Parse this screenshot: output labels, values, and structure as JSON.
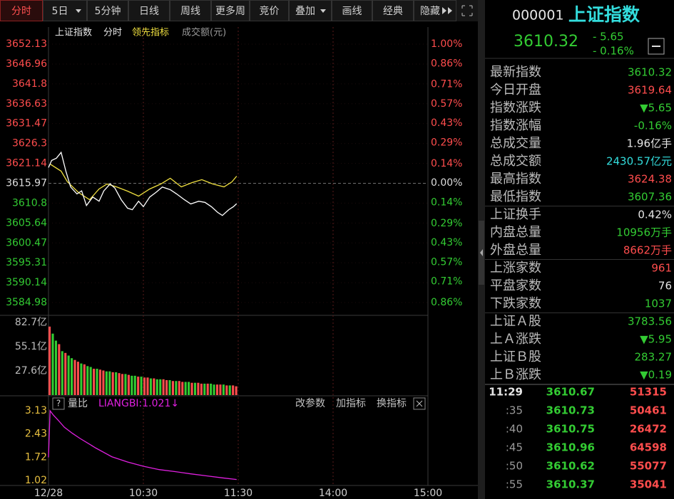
{
  "toolbar": {
    "tabs": [
      "分时",
      "5日",
      "5分钟",
      "日线",
      "周线",
      "更多周",
      "竞价",
      "叠加",
      "画线",
      "经典",
      "隐藏"
    ],
    "active": 0
  },
  "chart": {
    "legend": [
      {
        "text": "上证指数",
        "color": "#e6e6e6"
      },
      {
        "text": "分时",
        "color": "#e6e6e6"
      },
      {
        "text": "领先指标",
        "color": "#f0e040"
      },
      {
        "text": "成交额(元)",
        "color": "#9a9a9a"
      }
    ],
    "xlim": [
      0,
      240
    ],
    "xticks": [
      {
        "value": 0,
        "label": "12/28"
      },
      {
        "value": 60,
        "label": "10:30"
      },
      {
        "value": 120,
        "label": "11:30"
      },
      {
        "value": 180,
        "label": "14:00"
      },
      {
        "value": 240,
        "label": "15:00"
      }
    ],
    "ylim": [
      3584.98,
      3652.13
    ],
    "yticks": [
      3652.13,
      3646.96,
      3641.8,
      3636.63,
      3631.47,
      3626.3,
      3621.14,
      3615.97,
      3610.8,
      3605.64,
      3600.47,
      3595.31,
      3590.14,
      3584.98
    ],
    "pct_ylim": [
      -0.86,
      1.0
    ],
    "pct_ticks": [
      {
        "value": 1.0,
        "label": "1.00%"
      },
      {
        "value": 0.86,
        "label": "0.86%"
      },
      {
        "value": 0.71,
        "label": "0.71%"
      },
      {
        "value": 0.57,
        "label": "0.57%"
      },
      {
        "value": 0.43,
        "label": "0.43%"
      },
      {
        "value": 0.29,
        "label": "0.29%"
      },
      {
        "value": 0.14,
        "label": "0.14%"
      },
      {
        "value": 0,
        "label": "0.00%"
      },
      {
        "value": -0.14,
        "label": "0.14%"
      },
      {
        "value": -0.29,
        "label": "0.29%"
      },
      {
        "value": -0.43,
        "label": "0.43%"
      },
      {
        "value": -0.57,
        "label": "0.57%"
      },
      {
        "value": -0.71,
        "label": "0.71%"
      },
      {
        "value": -0.86,
        "label": "0.86%"
      }
    ],
    "up_color": "#ff4d4d",
    "down_color": "#33cc33",
    "flat_color": "#dddddd",
    "index_line": {
      "color": "#ffffff",
      "x": [
        0,
        2,
        5,
        8,
        11,
        14,
        18,
        21,
        24,
        28,
        32,
        35,
        39,
        42,
        46,
        50,
        53,
        57,
        60,
        64,
        68,
        72,
        77,
        81,
        86,
        90,
        95,
        99,
        103,
        107,
        110,
        114,
        117,
        119
      ],
      "values": [
        3620.05,
        3621.9,
        3622.5,
        3624.0,
        3619.1,
        3615.0,
        3613.2,
        3614.0,
        3610.2,
        3612.4,
        3611.3,
        3614.0,
        3615.8,
        3614.7,
        3611.7,
        3609.5,
        3609.1,
        3611.3,
        3609.9,
        3612.4,
        3613.6,
        3615.0,
        3614.3,
        3613.2,
        3611.7,
        3610.6,
        3611.3,
        3611.0,
        3609.9,
        3608.4,
        3607.6,
        3609.1,
        3609.9,
        3610.67
      ]
    },
    "leading_line": {
      "color": "#f0e040",
      "x": [
        1,
        8,
        12,
        19,
        26,
        32,
        37,
        43,
        50,
        57,
        64,
        71,
        77,
        84,
        91,
        97,
        104,
        111,
        116,
        119
      ],
      "values": [
        3620.97,
        3619.12,
        3616.34,
        3613.56,
        3611.71,
        3614.49,
        3615.78,
        3615.04,
        3613.93,
        3612.63,
        3614.49,
        3615.78,
        3617.27,
        3615.04,
        3616.16,
        3616.9,
        3615.78,
        3615.04,
        3616.34,
        3617.82
      ]
    },
    "volume": {
      "ylim": [
        0,
        82.7
      ],
      "yticks": [
        {
          "value": 82.7,
          "label": "82.7亿"
        },
        {
          "value": 55.1,
          "label": "55.1亿"
        },
        {
          "value": 27.6,
          "label": "27.6亿"
        }
      ],
      "x": [
        0,
        2,
        4,
        6,
        8,
        10,
        12,
        14,
        16,
        18,
        20,
        22,
        24,
        26,
        28,
        30,
        32,
        34,
        36,
        38,
        40,
        42,
        44,
        46,
        48,
        50,
        52,
        54,
        56,
        58,
        60,
        62,
        64,
        66,
        68,
        70,
        72,
        74,
        76,
        78,
        80,
        82,
        84,
        86,
        88,
        90,
        92,
        94,
        96,
        98,
        100,
        102,
        104,
        106,
        108,
        110,
        112,
        114,
        116,
        118
      ],
      "values": [
        78,
        70,
        62,
        58,
        50,
        48,
        45,
        42,
        40,
        38,
        36,
        35,
        33,
        32,
        30,
        30,
        29,
        28,
        27,
        27,
        26,
        26,
        25,
        24,
        24,
        23,
        22,
        22,
        21,
        21,
        20,
        20,
        19,
        19,
        18,
        18,
        18,
        17,
        17,
        16,
        16,
        16,
        15,
        15,
        15,
        14,
        14,
        14,
        13,
        13,
        13,
        13,
        12,
        12,
        12,
        12,
        11,
        11,
        11,
        10
      ],
      "up": [
        true,
        false,
        false,
        true,
        false,
        true,
        false,
        false,
        true,
        true,
        false,
        true,
        false,
        false,
        true,
        false,
        true,
        true,
        false,
        false,
        true,
        false,
        true,
        true,
        false,
        true,
        false,
        false,
        true,
        false,
        true,
        true,
        false,
        true,
        false,
        false,
        true,
        true,
        false,
        true,
        false,
        true,
        true,
        false,
        false,
        true,
        false,
        true,
        true,
        false,
        true,
        false,
        false,
        true,
        true,
        false,
        true,
        false,
        true,
        true
      ]
    },
    "indicator": {
      "help": "?",
      "name": "量比",
      "reading": "LIANGBI:1.021↓",
      "buttons": [
        "改参数",
        "加指标",
        "换指标"
      ],
      "color": "#e020e0",
      "tick_color": "#e8c040",
      "ylim": [
        1.02,
        3.13
      ],
      "yticks": [
        3.13,
        2.43,
        1.72,
        1.02
      ],
      "x": [
        0,
        1,
        3,
        6,
        10,
        15,
        20,
        30,
        40,
        50,
        60,
        70,
        80,
        90,
        100,
        110,
        119
      ],
      "values": [
        1.72,
        3.13,
        3.0,
        2.85,
        2.63,
        2.45,
        2.29,
        2.0,
        1.74,
        1.58,
        1.45,
        1.35,
        1.29,
        1.22,
        1.16,
        1.1,
        1.05
      ]
    }
  },
  "quote": {
    "code": "000001",
    "name": "上证指数",
    "price": 3610.32,
    "change": "- 5.65",
    "change_pct": "- 0.16%",
    "row_groups": [
      [
        {
          "label": "最新指数",
          "value": 3610.32,
          "color": "#33cc33"
        },
        {
          "label": "今日开盘",
          "value": 3619.64,
          "color": "#ff4d4d"
        },
        {
          "label": "指数涨跌",
          "value": "▼5.65",
          "color": "#33cc33"
        },
        {
          "label": "指数涨幅",
          "value": "-0.16%",
          "color": "#33cc33"
        },
        {
          "label": "总成交量",
          "value": "1.96亿手",
          "color": "#e6e6e6"
        },
        {
          "label": "总成交额",
          "value": "2430.57亿元",
          "color": "#33dddd"
        },
        {
          "label": "最高指数",
          "value": 3624.38,
          "color": "#ff4d4d"
        },
        {
          "label": "最低指数",
          "value": 3607.36,
          "color": "#33cc33"
        }
      ],
      [
        {
          "label": "上证换手",
          "value": "0.42%",
          "color": "#e6e6e6"
        },
        {
          "label": "内盘总量",
          "value": "10956万手",
          "color": "#33cc33"
        },
        {
          "label": "外盘总量",
          "value": "8662万手",
          "color": "#ff4d4d"
        }
      ],
      [
        {
          "label": "上涨家数",
          "value": 961,
          "color": "#ff4d4d"
        },
        {
          "label": "平盘家数",
          "value": 76,
          "color": "#e6e6e6"
        },
        {
          "label": "下跌家数",
          "value": 1037,
          "color": "#33cc33"
        }
      ],
      [
        {
          "label": "上证Ａ股",
          "value": 3783.56,
          "color": "#33cc33"
        },
        {
          "label": "上Ａ涨跌",
          "value": "▼5.95",
          "color": "#33cc33"
        },
        {
          "label": "上证Ｂ股",
          "value": 283.27,
          "color": "#33cc33"
        },
        {
          "label": "上Ｂ涨跌",
          "value": "▼0.19",
          "color": "#33cc33"
        }
      ]
    ],
    "ticks": [
      {
        "time": "11:29",
        "price": 3610.67,
        "volume": 51315
      },
      {
        "time": ":35",
        "price": 3610.73,
        "volume": 50461
      },
      {
        "time": ":40",
        "price": 3610.75,
        "volume": 26472
      },
      {
        "time": ":45",
        "price": 3610.96,
        "volume": 64598
      },
      {
        "time": ":50",
        "price": 3610.62,
        "volume": 55077
      },
      {
        "time": ":55",
        "price": 3610.37,
        "volume": 35041
      }
    ]
  }
}
